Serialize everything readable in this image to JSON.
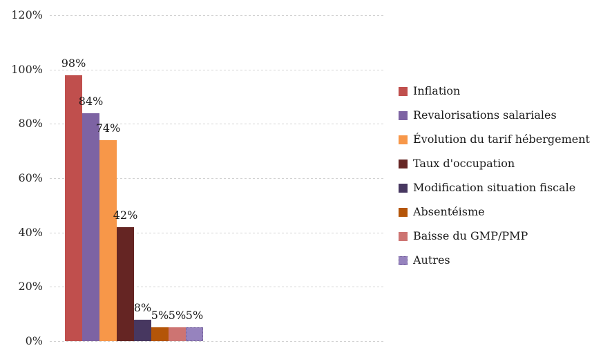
{
  "colors": {
    "background": "#FFFFFF",
    "gridline": "#D2D2D2",
    "text": "#262626"
  },
  "chart_data": {
    "type": "bar",
    "title": "",
    "xlabel": "",
    "ylabel": "",
    "ylim": [
      0,
      120
    ],
    "grid": true,
    "legend_position": "right",
    "categories": [
      ""
    ],
    "y_ticks": [
      {
        "value": 0,
        "label": "0%"
      },
      {
        "value": 20,
        "label": "20%"
      },
      {
        "value": 40,
        "label": "40%"
      },
      {
        "value": 60,
        "label": "60%"
      },
      {
        "value": 80,
        "label": "80%"
      },
      {
        "value": 100,
        "label": "100%"
      },
      {
        "value": 120,
        "label": "120%"
      }
    ],
    "series": [
      {
        "name": "Inflation",
        "value": 98,
        "data_label": "98%",
        "color": "#C04F4D"
      },
      {
        "name": "Revalorisations salariales",
        "value": 84,
        "data_label": "84%",
        "color": "#7D63A3"
      },
      {
        "name": "Évolution du tarif hébergement",
        "value": 74,
        "data_label": "74%",
        "color": "#F79749"
      },
      {
        "name": "Taux d'occupation",
        "value": 42,
        "data_label": "42%",
        "color": "#652523"
      },
      {
        "name": "Modification situation fiscale",
        "value": 8,
        "data_label": "8%",
        "color": "#473760"
      },
      {
        "name": "Absentéisme",
        "value": 5,
        "data_label": "5%",
        "color": "#B45508"
      },
      {
        "name": "Baisse du GMP/PMP",
        "value": 5,
        "data_label": "5%",
        "color": "#CD7472"
      },
      {
        "name": "Autres",
        "value": 5,
        "data_label": "5%",
        "color": "#9683BE",
        "border_color": "#6F5C96"
      }
    ]
  }
}
